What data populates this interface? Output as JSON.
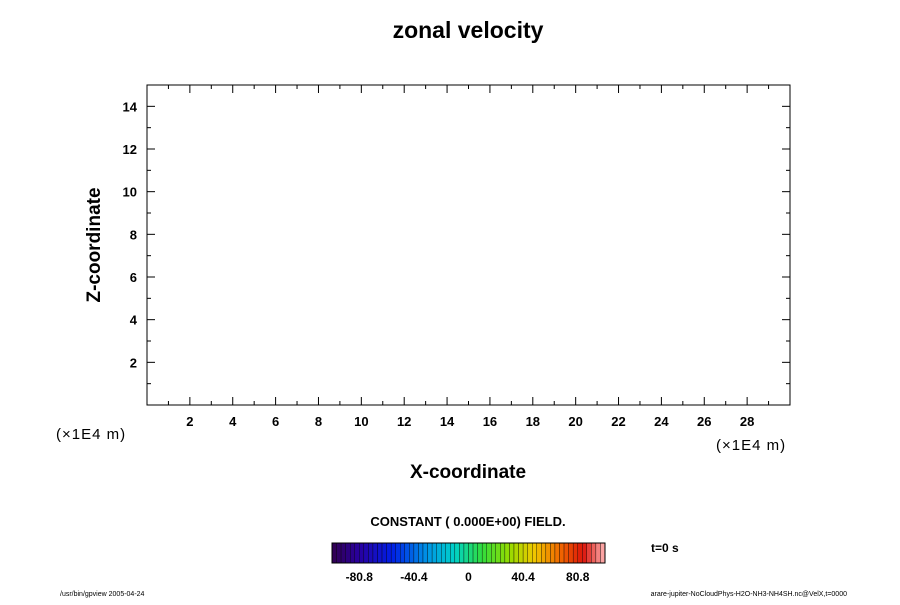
{
  "chart_data": {
    "type": "heatmap",
    "title": "zonal velocity",
    "xlabel": "X-coordinate",
    "ylabel": "Z-coordinate",
    "x_unit_label": "(×1E4 m)",
    "y_unit_label": "(×1E4 m)",
    "xlim": [
      0,
      30
    ],
    "ylim": [
      0,
      15
    ],
    "x_ticks": [
      2,
      4,
      6,
      8,
      10,
      12,
      14,
      16,
      18,
      20,
      22,
      24,
      26,
      28
    ],
    "y_ticks": [
      2,
      4,
      6,
      8,
      10,
      12,
      14
    ],
    "x_minor_step": 1,
    "y_minor_step": 1,
    "field_note": "CONSTANT ( 0.000E+00) FIELD.",
    "time_label": "t=0 s",
    "colorbar": {
      "min": -101,
      "max": 101,
      "ticks": [
        -80.8,
        -40.4,
        0,
        40.4,
        80.8
      ],
      "tick_labels": [
        "-80.8",
        "-40.4",
        "0",
        "40.4",
        "80.8"
      ],
      "levels": 60,
      "colormap": "rainbow"
    },
    "grid": false
  },
  "footer": {
    "left": "/usr/bin/gpview 2005-04-24",
    "right": "arare-jupiter-NoCloudPhys-H2O-NH3-NH4SH.nc@VelX,t=0000"
  }
}
